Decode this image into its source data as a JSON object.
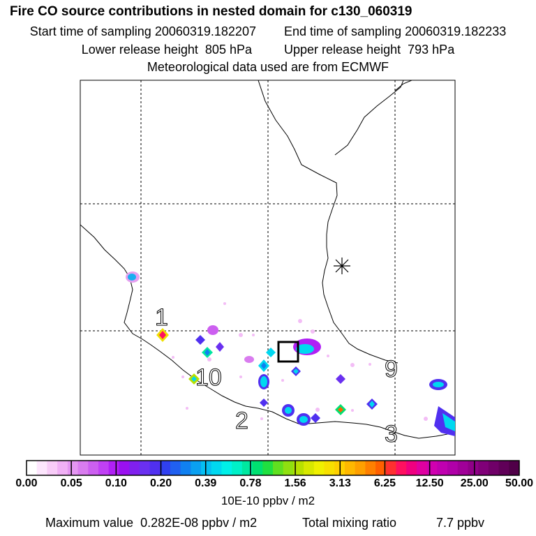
{
  "title": "Fire CO source contributions in nested domain for c130_060319",
  "sampling": {
    "start_label": "Start time of sampling",
    "start_value": "20060319.182207",
    "end_label": "End time of sampling",
    "end_value": "20060319.182233"
  },
  "release": {
    "lower_label": "Lower release height",
    "lower_value": "805 hPa",
    "upper_label": "Upper release height",
    "upper_value": "793 hPa"
  },
  "meteo_text": "Meteorological data used are from ECMWF",
  "map_labels": [
    "1",
    "10",
    "2",
    "9",
    "3"
  ],
  "colorbar": {
    "tick_labels": [
      "0.00",
      "0.05",
      "0.10",
      "0.20",
      "0.39",
      "0.78",
      "1.56",
      "3.13",
      "6.25",
      "12.50",
      "25.00",
      "50.00"
    ],
    "units": "10E-10 ppbv / m2",
    "colors": [
      "#ffffff",
      "#fde6fd",
      "#f8ccf8",
      "#f0b0f5",
      "#e496f2",
      "#d97cef",
      "#cc5ff0",
      "#c040f5",
      "#b020f5",
      "#9a10f0",
      "#8020ee",
      "#6a30f0",
      "#5030f0",
      "#3040f0",
      "#2060f0",
      "#1080f0",
      "#0aa0f0",
      "#05bff2",
      "#00d8f0",
      "#00f0e8",
      "#00f0c8",
      "#00e8a0",
      "#00e070",
      "#20e040",
      "#60e020",
      "#90e010",
      "#b8e000",
      "#d8e800",
      "#f0f000",
      "#f8e000",
      "#ffd000",
      "#ffb800",
      "#ffa000",
      "#ff8000",
      "#ff6000",
      "#ff3030",
      "#ff1060",
      "#f00080",
      "#e000a0",
      "#d000b0",
      "#c000b0",
      "#b000a8",
      "#a00098",
      "#900088",
      "#800078",
      "#700068",
      "#600058",
      "#500048"
    ]
  },
  "summary": {
    "max_label": "Maximum value",
    "max_value": "0.282E-08 ppbv / m2",
    "total_label": "Total mixing ratio",
    "total_value": "7.7 ppbv"
  }
}
